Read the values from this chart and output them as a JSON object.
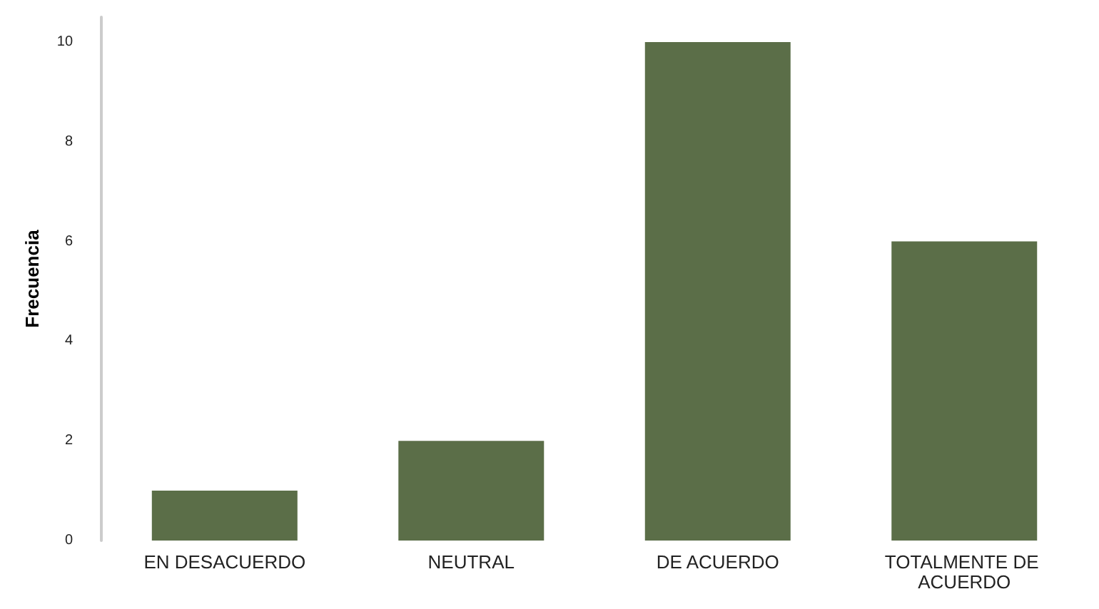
{
  "chart_data": {
    "type": "bar",
    "ylabel": "Frecuencia",
    "categories": [
      "EN DESACUERDO",
      "NEUTRAL",
      "DE ACUERDO",
      "TOTALMENTE DE ACUERDO"
    ],
    "values": [
      1,
      2,
      10,
      6
    ],
    "color": "#5b6e48",
    "ylim": [
      0,
      10.5
    ],
    "yticks": [
      0,
      2,
      4,
      6,
      8,
      10
    ],
    "grid": false
  }
}
